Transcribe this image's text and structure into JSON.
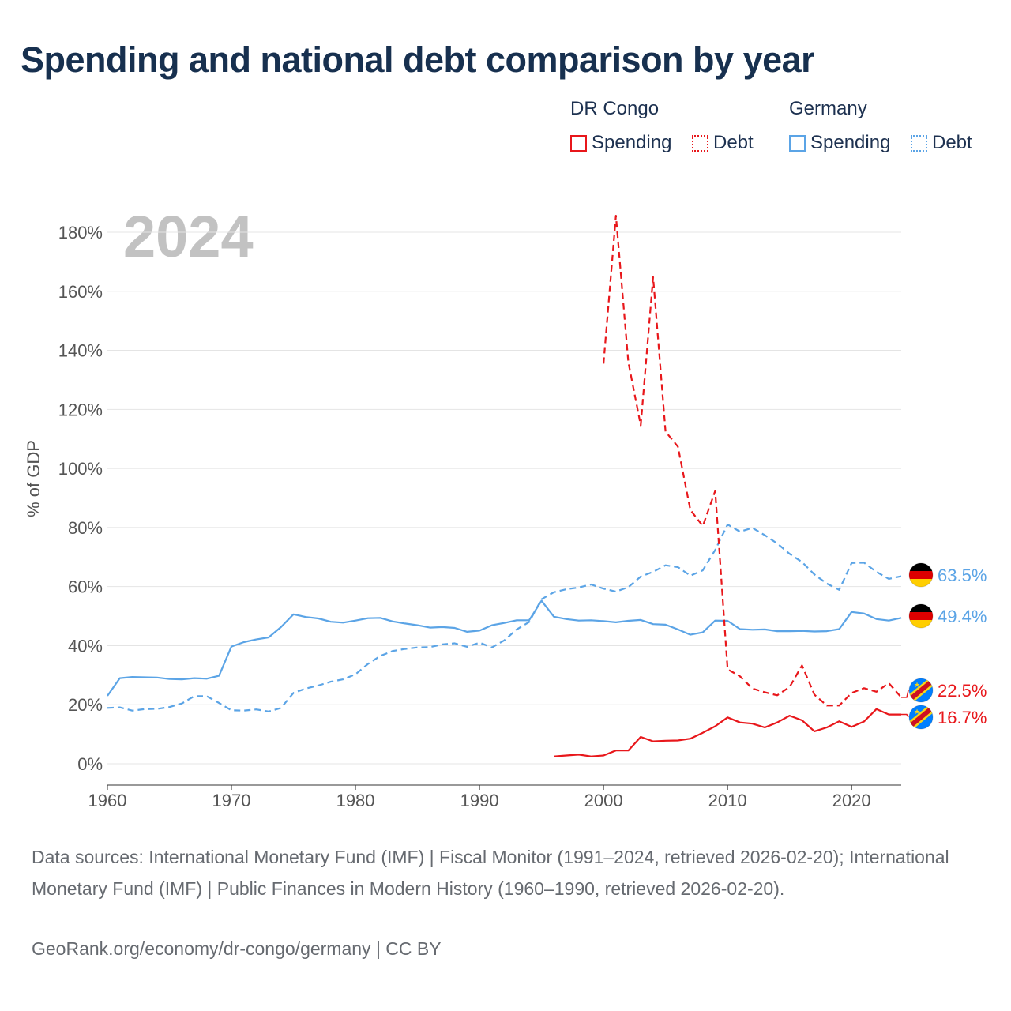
{
  "title": "Spending and national debt comparison by year",
  "legend": {
    "groups": [
      {
        "name": "DR Congo",
        "color": "#e8171b",
        "items": [
          {
            "label": "Spending",
            "style": "solid"
          },
          {
            "label": "Debt",
            "style": "dotted"
          }
        ]
      },
      {
        "name": "Germany",
        "color": "#5ba4e6",
        "items": [
          {
            "label": "Spending",
            "style": "solid"
          },
          {
            "label": "Debt",
            "style": "dotted"
          }
        ]
      }
    ]
  },
  "chart_data": {
    "type": "line",
    "watermark_year": "2024",
    "ylabel": "% of GDP",
    "xlabel": "",
    "xlim": [
      1960,
      2024
    ],
    "ylim": [
      0,
      180
    ],
    "xticks": [
      1960,
      1970,
      1980,
      1990,
      2000,
      2010,
      2020
    ],
    "yticks": [
      0,
      20,
      40,
      60,
      80,
      100,
      120,
      140,
      160,
      180
    ],
    "y_tick_suffix": "%",
    "grid": "horizontal",
    "series": [
      {
        "name": "Germany Debt",
        "country": "Germany",
        "measure": "Debt",
        "color": "#5ba4e6",
        "dash": true,
        "end_label": "63.5%",
        "flag": "germany",
        "x": [
          1960,
          1961,
          1962,
          1963,
          1964,
          1965,
          1966,
          1967,
          1968,
          1969,
          1970,
          1971,
          1972,
          1973,
          1974,
          1975,
          1976,
          1977,
          1978,
          1979,
          1980,
          1981,
          1982,
          1983,
          1984,
          1985,
          1986,
          1987,
          1988,
          1989,
          1990,
          1991,
          1992,
          1993,
          1994,
          1995,
          1996,
          1997,
          1998,
          1999,
          2000,
          2001,
          2002,
          2003,
          2004,
          2005,
          2006,
          2007,
          2008,
          2009,
          2010,
          2011,
          2012,
          2013,
          2014,
          2015,
          2016,
          2017,
          2018,
          2019,
          2020,
          2021,
          2022,
          2023,
          2024
        ],
        "values": [
          18.9,
          19.1,
          18.0,
          18.5,
          18.6,
          19.2,
          20.4,
          22.9,
          22.9,
          20.6,
          18.1,
          18.0,
          18.4,
          17.7,
          18.9,
          24.0,
          25.5,
          26.5,
          27.8,
          28.6,
          30.3,
          33.8,
          36.5,
          38.2,
          38.9,
          39.4,
          39.5,
          40.4,
          40.8,
          39.6,
          41.0,
          39.4,
          41.8,
          45.5,
          48.0,
          55.7,
          58.1,
          59.1,
          59.7,
          60.7,
          59.3,
          58.3,
          59.8,
          63.4,
          65.0,
          67.2,
          66.6,
          63.7,
          65.5,
          72.4,
          81.0,
          78.6,
          79.9,
          77.4,
          74.6,
          71.1,
          68.3,
          64.1,
          61.0,
          58.9,
          68.0,
          68.1,
          65.0,
          62.6,
          63.5
        ]
      },
      {
        "name": "Germany Spending",
        "country": "Germany",
        "measure": "Spending",
        "color": "#5ba4e6",
        "dash": false,
        "end_label": "49.4%",
        "flag": "germany",
        "x": [
          1960,
          1961,
          1962,
          1963,
          1964,
          1965,
          1966,
          1967,
          1968,
          1969,
          1970,
          1971,
          1972,
          1973,
          1974,
          1975,
          1976,
          1977,
          1978,
          1979,
          1980,
          1981,
          1982,
          1983,
          1984,
          1985,
          1986,
          1987,
          1988,
          1989,
          1990,
          1991,
          1992,
          1993,
          1994,
          1995,
          1996,
          1997,
          1998,
          1999,
          2000,
          2001,
          2002,
          2003,
          2004,
          2005,
          2006,
          2007,
          2008,
          2009,
          2010,
          2011,
          2012,
          2013,
          2014,
          2015,
          2016,
          2017,
          2018,
          2019,
          2020,
          2021,
          2022,
          2023,
          2024
        ],
        "values": [
          23.0,
          29.0,
          29.4,
          29.3,
          29.2,
          28.7,
          28.6,
          29.0,
          28.8,
          29.8,
          39.7,
          41.2,
          42.1,
          42.8,
          46.3,
          50.6,
          49.7,
          49.2,
          48.1,
          47.8,
          48.5,
          49.3,
          49.4,
          48.2,
          47.5,
          46.9,
          46.1,
          46.3,
          46.0,
          44.7,
          45.1,
          46.9,
          47.7,
          48.6,
          48.6,
          55.2,
          49.8,
          49.0,
          48.5,
          48.6,
          48.3,
          47.9,
          48.4,
          48.7,
          47.3,
          47.1,
          45.5,
          43.7,
          44.5,
          48.5,
          48.4,
          45.6,
          45.4,
          45.5,
          44.9,
          44.9,
          45.0,
          44.8,
          44.9,
          45.6,
          51.4,
          50.9,
          49.0,
          48.5,
          49.4
        ]
      },
      {
        "name": "DR Congo Debt",
        "country": "DR Congo",
        "measure": "Debt",
        "color": "#e8171b",
        "dash": true,
        "end_label": "22.5%",
        "flag": "dr-congo",
        "x": [
          2000,
          2001,
          2002,
          2003,
          2004,
          2005,
          2006,
          2007,
          2008,
          2009,
          2010,
          2011,
          2012,
          2013,
          2014,
          2015,
          2016,
          2017,
          2018,
          2019,
          2020,
          2021,
          2022,
          2023,
          2024
        ],
        "values": [
          135.5,
          185.6,
          136.0,
          114.6,
          164.8,
          112.5,
          107.4,
          86.0,
          80.5,
          92.4,
          32.0,
          29.6,
          25.5,
          24.2,
          23.2,
          26.0,
          33.3,
          23.4,
          19.7,
          19.7,
          24.0,
          25.6,
          24.4,
          27.3,
          22.5
        ]
      },
      {
        "name": "DR Congo Spending",
        "country": "DR Congo",
        "measure": "Spending",
        "color": "#e8171b",
        "dash": false,
        "end_label": "16.7%",
        "flag": "dr-congo",
        "x": [
          1996,
          1997,
          1998,
          1999,
          2000,
          2001,
          2002,
          2003,
          2004,
          2005,
          2006,
          2007,
          2008,
          2009,
          2010,
          2011,
          2012,
          2013,
          2014,
          2015,
          2016,
          2017,
          2018,
          2019,
          2020,
          2021,
          2022,
          2023,
          2024
        ],
        "values": [
          2.5,
          2.8,
          3.1,
          2.5,
          2.8,
          4.5,
          4.5,
          9.1,
          7.6,
          7.8,
          7.9,
          8.5,
          10.5,
          12.7,
          15.7,
          14.0,
          13.6,
          12.3,
          14.0,
          16.3,
          14.7,
          11.0,
          12.3,
          14.4,
          12.5,
          14.3,
          18.5,
          16.7,
          16.7
        ]
      }
    ]
  },
  "footer": {
    "sources": "Data sources: International Monetary Fund (IMF) | Fiscal Monitor (1991–2024, retrieved 2026-02-20); International Monetary Fund (IMF) | Public Finances in Modern History (1960–1990, retrieved 2026-02-20).",
    "credit": "GeoRank.org/economy/dr-congo/germany | CC BY"
  }
}
